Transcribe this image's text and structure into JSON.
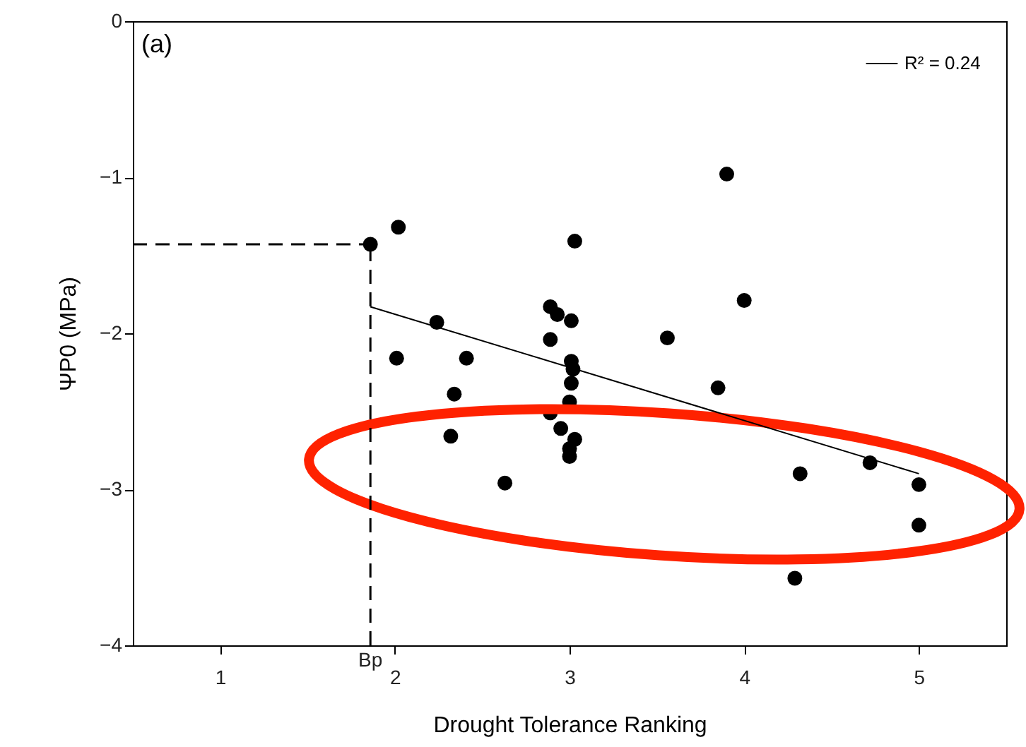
{
  "chart_data": {
    "type": "scatter",
    "xlabel": "Drought Tolerance Ranking",
    "ylabel": "ΨP0 (MPa)",
    "xlim": [
      0.5,
      5.5
    ],
    "xticks": [
      1,
      2,
      3,
      4,
      5
    ],
    "ylim": [
      -4,
      0
    ],
    "yticks": [
      0,
      -1,
      -2,
      -3,
      -4
    ],
    "grid": false,
    "legend": "top right",
    "annotations": [
      "(a)"
    ],
    "ref_lines": [
      {
        "axis": "x",
        "value": 1.86,
        "label": "Bp",
        "line_style": "dashed",
        "color": "#000000"
      },
      {
        "axis": "y",
        "value": -1.43,
        "label": null,
        "line_style": "dashed",
        "color": "#000000"
      }
    ],
    "series": [
      {
        "type": "scatter",
        "marker": "circle",
        "color": "#000000",
        "x": [
          1.86,
          2.02,
          2.01,
          2.24,
          2.41,
          2.34,
          2.32,
          2.63,
          2.89,
          2.93,
          3.01,
          2.89,
          3.01,
          3.02,
          3.01,
          3.0,
          2.89,
          2.95,
          3.03,
          3.0,
          3.0,
          3.03,
          3.9,
          4.0,
          3.56,
          3.85,
          4.32,
          4.72,
          5.0,
          5.0,
          4.29
        ],
        "values": [
          -1.43,
          -1.32,
          -2.16,
          -1.93,
          -2.16,
          -2.39,
          -2.66,
          -2.96,
          -1.83,
          -1.88,
          -1.92,
          -2.04,
          -2.18,
          -2.23,
          -2.32,
          -2.44,
          -2.51,
          -2.61,
          -2.68,
          -2.74,
          -2.79,
          -1.41,
          -0.98,
          -1.79,
          -2.03,
          -2.35,
          -2.9,
          -2.83,
          -2.97,
          -3.23,
          -3.57
        ]
      },
      {
        "type": "line",
        "name": "R² = 0.24",
        "color": "#000000",
        "line_style": "solid",
        "x": [
          1.86,
          5.0
        ],
        "values": [
          -1.83,
          -2.9
        ]
      }
    ]
  }
}
